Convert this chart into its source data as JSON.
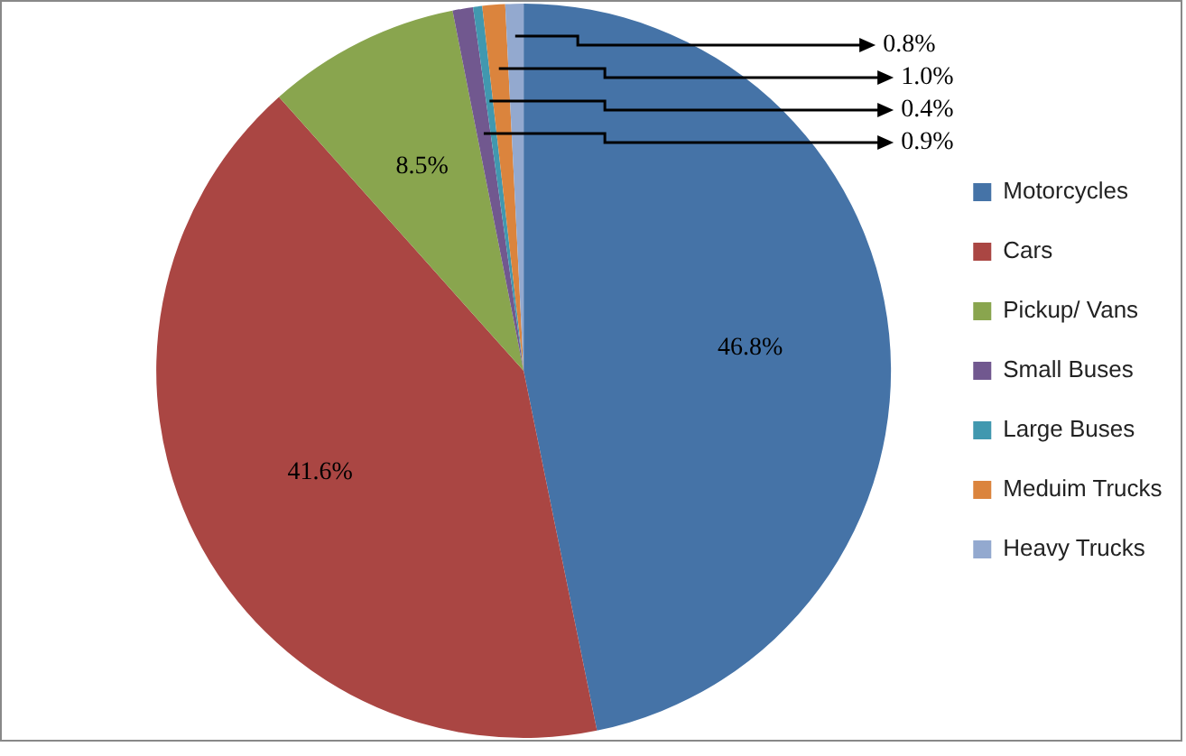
{
  "chart_data": {
    "type": "pie",
    "categories": [
      "Motorcycles",
      "Cars",
      "Pickup/ Vans",
      "Small Buses",
      "Large Buses",
      "Meduim Trucks",
      "Heavy Trucks"
    ],
    "values": [
      46.8,
      41.6,
      8.5,
      0.9,
      0.4,
      1.0,
      0.8
    ],
    "colors": [
      "#4573a7",
      "#aa4643",
      "#89a54e",
      "#71588f",
      "#4198af",
      "#db843d",
      "#93a9cf"
    ],
    "value_labels": [
      "46.8%",
      "41.6%",
      "8.5%",
      "0.9%",
      "0.4%",
      "1.0%",
      "0.8%"
    ],
    "legend": "right"
  }
}
